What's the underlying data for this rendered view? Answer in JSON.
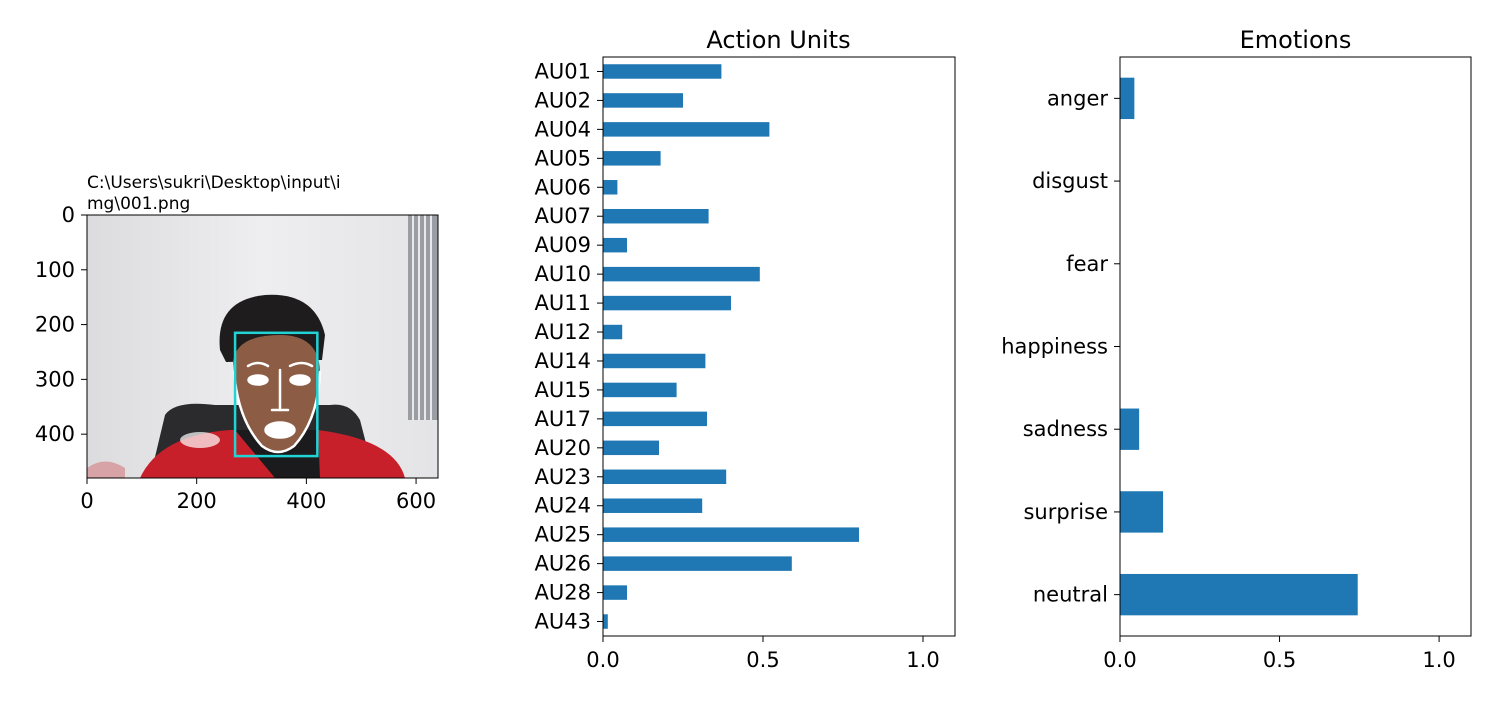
{
  "colors": {
    "bar": "#1f77b4",
    "bbox": "#22d3d6",
    "landmarks": "#ffffff",
    "wall": "#e6e6e8",
    "shirt_red": "#c8202a",
    "chair": "#2b2b2e"
  },
  "chart_data": [
    {
      "type": "image",
      "title_lines": [
        "C:\\Users\\sukri\\Desktop\\input\\i",
        "mg\\001.png"
      ],
      "x_ticks": [
        0,
        200,
        400,
        600
      ],
      "y_ticks": [
        0,
        100,
        200,
        300,
        400
      ],
      "xlim": [
        0,
        640
      ],
      "ylim": [
        480,
        0
      ],
      "face_box": {
        "x0": 270,
        "y0": 215,
        "x1": 420,
        "y1": 440
      },
      "face_box_color": "bbox",
      "landmark_color": "landmarks"
    },
    {
      "type": "bar",
      "orientation": "horizontal",
      "title": "Action Units",
      "categories": [
        "AU01",
        "AU02",
        "AU04",
        "AU05",
        "AU06",
        "AU07",
        "AU09",
        "AU10",
        "AU11",
        "AU12",
        "AU14",
        "AU15",
        "AU17",
        "AU20",
        "AU23",
        "AU24",
        "AU25",
        "AU26",
        "AU28",
        "AU43"
      ],
      "values": [
        0.37,
        0.25,
        0.52,
        0.18,
        0.045,
        0.33,
        0.075,
        0.49,
        0.4,
        0.06,
        0.32,
        0.23,
        0.325,
        0.175,
        0.385,
        0.31,
        0.8,
        0.59,
        0.075,
        0.015
      ],
      "xlim": [
        0,
        1.1
      ],
      "x_ticks": [
        "0.0",
        "0.5",
        "1.0"
      ],
      "x_tick_values": [
        0,
        0.5,
        1.0
      ],
      "color": "bar"
    },
    {
      "type": "bar",
      "orientation": "horizontal",
      "title": "Emotions",
      "categories": [
        "anger",
        "disgust",
        "fear",
        "happiness",
        "sadness",
        "surprise",
        "neutral"
      ],
      "values": [
        0.045,
        0.0,
        0.0,
        0.0,
        0.06,
        0.135,
        0.745
      ],
      "xlim": [
        0,
        1.1
      ],
      "x_ticks": [
        "0.0",
        "0.5",
        "1.0"
      ],
      "x_tick_values": [
        0,
        0.5,
        1.0
      ],
      "color": "bar"
    }
  ]
}
